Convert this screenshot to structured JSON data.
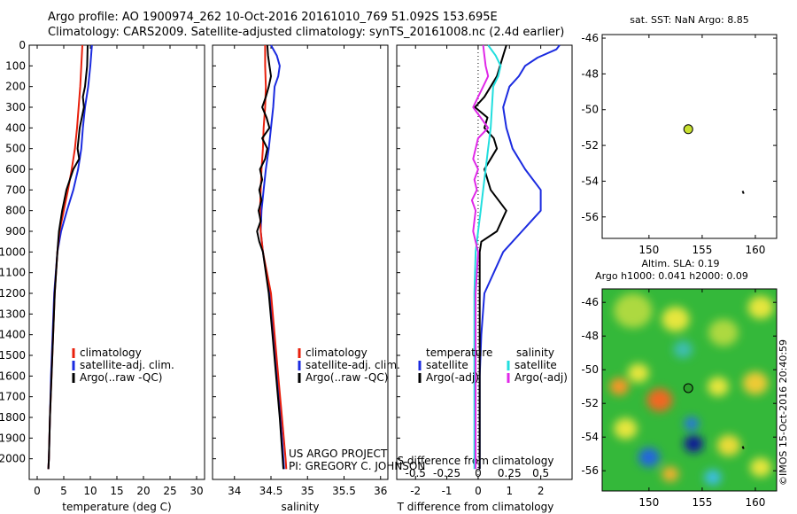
{
  "header": {
    "line1": "Argo profile: AO 1900974_262 10-Oct-2016 20161010_769 51.092S 153.695E",
    "line2": "Climatology: CARS2009. Satellite-adjusted climatology: synTS_20161008.nc (2.4d earlier)"
  },
  "credit": "©IMOS 15-Oct-2016 20:40:59",
  "project": {
    "line1": "US ARGO PROJECT",
    "line2": "PI: GREGORY C. JOHNSON"
  },
  "chart_data": [
    {
      "id": "temperature",
      "type": "line",
      "xlabel": "temperature (deg C)",
      "xlim": [
        -1.5,
        31.5
      ],
      "ylim": [
        0,
        2100
      ],
      "xticks": [
        "0",
        "5",
        "10",
        "15",
        "20",
        "25",
        "30"
      ],
      "yticks": [
        "0",
        "100",
        "200",
        "300",
        "400",
        "500",
        "600",
        "700",
        "800",
        "900",
        "1000",
        "1100",
        "1200",
        "1300",
        "1400",
        "1500",
        "1600",
        "1700",
        "1800",
        "1900",
        "2000"
      ],
      "legend": [
        "climatology",
        "satellite-adj. clim.",
        "Argo(..raw -QC)"
      ],
      "colors": {
        "climatology": "#e8200c",
        "satellite": "#1b2be0",
        "argo": "#000000"
      },
      "series": [
        {
          "key": "climatology",
          "depth": [
            0,
            100,
            200,
            300,
            400,
            500,
            600,
            700,
            800,
            900,
            1000,
            1200,
            1400,
            1600,
            1800,
            2000,
            2050
          ],
          "values": [
            8.5,
            8.3,
            8.1,
            7.8,
            7.5,
            7.1,
            6.5,
            5.8,
            5.0,
            4.2,
            3.8,
            3.3,
            3.0,
            2.7,
            2.4,
            2.2,
            2.1
          ]
        },
        {
          "key": "satellite",
          "depth": [
            0,
            100,
            200,
            300,
            400,
            500,
            600,
            700,
            800,
            900,
            1000,
            1200,
            1400,
            1600,
            1800,
            2000,
            2050
          ],
          "values": [
            10.3,
            10.0,
            9.6,
            9.0,
            8.6,
            8.3,
            7.7,
            6.8,
            5.6,
            4.5,
            3.8,
            3.2,
            2.9,
            2.6,
            2.4,
            2.2,
            2.1
          ]
        },
        {
          "key": "argo",
          "depth": [
            0,
            100,
            200,
            250,
            300,
            400,
            500,
            550,
            600,
            700,
            800,
            900,
            1000,
            1200,
            1400,
            1600,
            1800,
            2000,
            2050
          ],
          "values": [
            9.5,
            9.4,
            9.0,
            8.6,
            8.8,
            8.0,
            7.6,
            7.9,
            6.8,
            5.5,
            4.7,
            4.1,
            3.8,
            3.3,
            3.0,
            2.7,
            2.4,
            2.2,
            2.1
          ]
        }
      ]
    },
    {
      "id": "salinity",
      "type": "line",
      "xlabel": "salinity",
      "xlim": [
        33.7,
        36.1
      ],
      "ylim": [
        0,
        2100
      ],
      "xticks": [
        "34",
        "34.5",
        "35",
        "35.5",
        "36"
      ],
      "legend": [
        "climatology",
        "satellite-adj. clim.",
        "Argo(..raw -QC)"
      ],
      "series": [
        {
          "key": "climatology",
          "depth": [
            0,
            100,
            200,
            300,
            400,
            500,
            600,
            700,
            800,
            900,
            1000,
            1200,
            1400,
            1600,
            1800,
            2000,
            2050
          ],
          "values": [
            34.42,
            34.42,
            34.43,
            34.42,
            34.4,
            34.39,
            34.37,
            34.36,
            34.35,
            34.36,
            34.39,
            34.5,
            34.55,
            34.6,
            34.65,
            34.7,
            34.71
          ]
        },
        {
          "key": "satellite",
          "depth": [
            0,
            50,
            100,
            150,
            200,
            300,
            400,
            500,
            600,
            700,
            800,
            900,
            1000,
            1200,
            1400,
            1600,
            1800,
            2000,
            2050
          ],
          "values": [
            34.5,
            34.58,
            34.62,
            34.6,
            34.55,
            34.53,
            34.5,
            34.47,
            34.43,
            34.4,
            34.37,
            34.36,
            34.39,
            34.48,
            34.54,
            34.58,
            34.63,
            34.67,
            34.68
          ]
        },
        {
          "key": "argo",
          "depth": [
            0,
            50,
            100,
            150,
            200,
            250,
            300,
            350,
            400,
            450,
            500,
            550,
            600,
            650,
            700,
            750,
            800,
            850,
            900,
            950,
            1000,
            1200,
            1400,
            1600,
            1800,
            2000,
            2050
          ],
          "values": [
            34.45,
            34.46,
            34.48,
            34.5,
            34.47,
            34.43,
            34.38,
            34.44,
            34.48,
            34.38,
            34.45,
            34.42,
            34.35,
            34.38,
            34.34,
            34.37,
            34.33,
            34.36,
            34.31,
            34.34,
            34.39,
            34.47,
            34.52,
            34.57,
            34.62,
            34.66,
            34.67
          ]
        }
      ]
    },
    {
      "id": "difference",
      "type": "line",
      "xlabel": "T difference from climatology",
      "xlabel2": "S difference from climatology",
      "xlim": [
        -2.6,
        3.0
      ],
      "ylim": [
        0,
        2100
      ],
      "xticks": [
        "-2",
        "-1",
        "0",
        "1",
        "2"
      ],
      "xticks2": [
        "-0.5",
        "-0.25",
        "0",
        "0.25",
        "0.5"
      ],
      "legend_headers": [
        "temperature",
        "salinity"
      ],
      "legend": [
        "satellite",
        "Argo(-adj)",
        "satellite",
        "Argo(-adj)"
      ],
      "colors": {
        "t_satellite": "#1b2be0",
        "t_argo": "#000000",
        "s_satellite": "#22dede",
        "s_argo": "#e028e8"
      },
      "series": [
        {
          "key": "t_satellite",
          "depth": [
            0,
            20,
            60,
            100,
            150,
            200,
            300,
            400,
            500,
            600,
            700,
            800,
            900,
            1000,
            1200,
            1400,
            1600,
            1800,
            2000,
            2050
          ],
          "values": [
            2.6,
            2.5,
            1.9,
            1.5,
            1.3,
            1.0,
            0.8,
            0.9,
            1.1,
            1.5,
            2.0,
            2.0,
            1.4,
            0.8,
            0.2,
            0.1,
            0.05,
            0.05,
            0.05,
            0.05
          ]
        },
        {
          "key": "t_argo",
          "depth": [
            0,
            50,
            100,
            150,
            200,
            250,
            300,
            350,
            400,
            450,
            500,
            550,
            600,
            700,
            800,
            900,
            950,
            1000,
            1200,
            1400,
            1600,
            1800,
            2000,
            2050
          ],
          "values": [
            0.9,
            0.8,
            0.7,
            0.6,
            0.4,
            0.2,
            -0.1,
            0.3,
            0.2,
            0.5,
            0.6,
            0.4,
            0.2,
            0.4,
            0.9,
            0.6,
            0.1,
            0.05,
            0.05,
            0.05,
            0.05,
            0.05,
            0.05,
            0.05
          ]
        },
        {
          "key": "s_satellite",
          "depth": [
            0,
            50,
            100,
            150,
            200,
            300,
            400,
            500,
            600,
            700,
            800,
            900,
            1000,
            1200,
            1400,
            1600,
            1800,
            2000,
            2050
          ],
          "values": [
            0.08,
            0.14,
            0.18,
            0.16,
            0.12,
            0.11,
            0.1,
            0.08,
            0.06,
            0.04,
            0.02,
            0.0,
            -0.02,
            -0.03,
            -0.03,
            -0.03,
            -0.03,
            -0.03,
            -0.03
          ]
        },
        {
          "key": "s_argo",
          "depth": [
            0,
            50,
            100,
            150,
            200,
            250,
            300,
            350,
            400,
            450,
            500,
            550,
            600,
            650,
            700,
            750,
            800,
            850,
            900,
            950,
            1000,
            1200,
            1400,
            1600,
            1800,
            2000,
            2050
          ],
          "values": [
            0.04,
            0.05,
            0.06,
            0.08,
            0.04,
            0.0,
            -0.04,
            0.02,
            0.08,
            0.0,
            -0.02,
            -0.04,
            0.0,
            -0.03,
            -0.01,
            -0.05,
            -0.02,
            -0.03,
            -0.04,
            -0.02,
            0.0,
            -0.02,
            -0.02,
            -0.02,
            -0.02,
            -0.02,
            -0.02
          ]
        }
      ]
    },
    {
      "id": "sst_map",
      "type": "scatter",
      "title": "sat. SST: NaN Argo: 8.85",
      "xlim": [
        145.6,
        162
      ],
      "ylim": [
        -57.2,
        -45.8
      ],
      "xticks": [
        "150",
        "155",
        "160"
      ],
      "yticks": [
        "-46",
        "-48",
        "-50",
        "-52",
        "-54",
        "-56"
      ],
      "profile": {
        "lon": 153.695,
        "lat": -51.092,
        "color": "#c8e030"
      },
      "track": [
        [
          158.8,
          -54.55
        ],
        [
          158.9,
          -54.7
        ]
      ]
    },
    {
      "id": "sla_map",
      "type": "heatmap",
      "title_line1": "Altim. SLA: 0.19",
      "title_line2": "Argo h1000: 0.041 h2000: 0.09",
      "xlim": [
        145.6,
        162
      ],
      "ylim": [
        -57.2,
        -45.2
      ],
      "xticks": [
        "150",
        "155",
        "160"
      ],
      "yticks": [
        "-46",
        "-48",
        "-50",
        "-52",
        "-54",
        "-56"
      ],
      "profile": {
        "lon": 153.695,
        "lat": -51.092,
        "color": "#2ca02c"
      },
      "track": [
        [
          158.8,
          -54.55
        ],
        [
          158.9,
          -54.7
        ]
      ],
      "blobs": [
        {
          "lon": 148.5,
          "lat": -46.5,
          "r": 1.8,
          "level": 0.55
        },
        {
          "lon": 152.5,
          "lat": -47.0,
          "r": 1.3,
          "level": 0.6
        },
        {
          "lon": 157.0,
          "lat": -47.8,
          "r": 1.4,
          "level": 0.55
        },
        {
          "lon": 160.5,
          "lat": -46.3,
          "r": 1.2,
          "level": 0.6
        },
        {
          "lon": 153.2,
          "lat": -48.8,
          "r": 0.9,
          "level": 0.35
        },
        {
          "lon": 149.0,
          "lat": -50.2,
          "r": 1.0,
          "level": 0.6
        },
        {
          "lon": 151.0,
          "lat": -51.8,
          "r": 1.2,
          "level": 0.85
        },
        {
          "lon": 147.2,
          "lat": -51.0,
          "r": 0.9,
          "level": 0.75
        },
        {
          "lon": 156.5,
          "lat": -51.0,
          "r": 1.0,
          "level": 0.6
        },
        {
          "lon": 160.0,
          "lat": -50.8,
          "r": 1.2,
          "level": 0.65
        },
        {
          "lon": 154.2,
          "lat": -54.4,
          "r": 0.9,
          "level": 0.02
        },
        {
          "lon": 154.0,
          "lat": -53.2,
          "r": 0.7,
          "level": 0.2
        },
        {
          "lon": 150.0,
          "lat": -55.2,
          "r": 1.0,
          "level": 0.18
        },
        {
          "lon": 147.8,
          "lat": -53.5,
          "r": 1.1,
          "level": 0.6
        },
        {
          "lon": 157.5,
          "lat": -54.5,
          "r": 1.1,
          "level": 0.62
        },
        {
          "lon": 152.0,
          "lat": -56.2,
          "r": 0.8,
          "level": 0.7
        },
        {
          "lon": 160.5,
          "lat": -55.8,
          "r": 1.0,
          "level": 0.6
        },
        {
          "lon": 156.0,
          "lat": -56.4,
          "r": 0.8,
          "level": 0.3
        }
      ]
    }
  ]
}
